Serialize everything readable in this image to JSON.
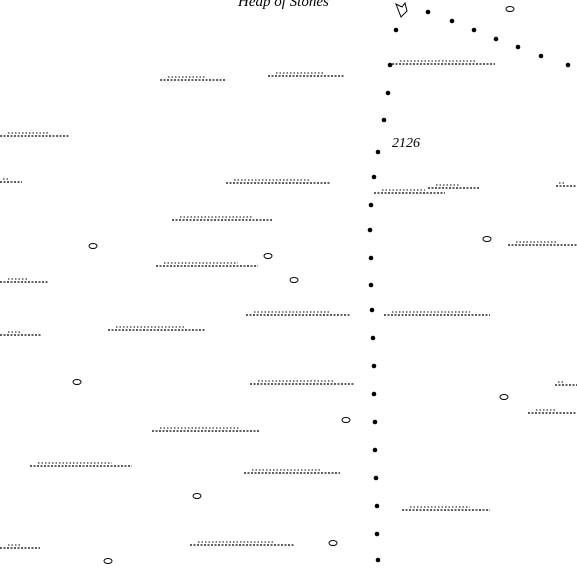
{
  "labels": {
    "heap": "Heap of Stones",
    "spot_height": "2126"
  }
}
